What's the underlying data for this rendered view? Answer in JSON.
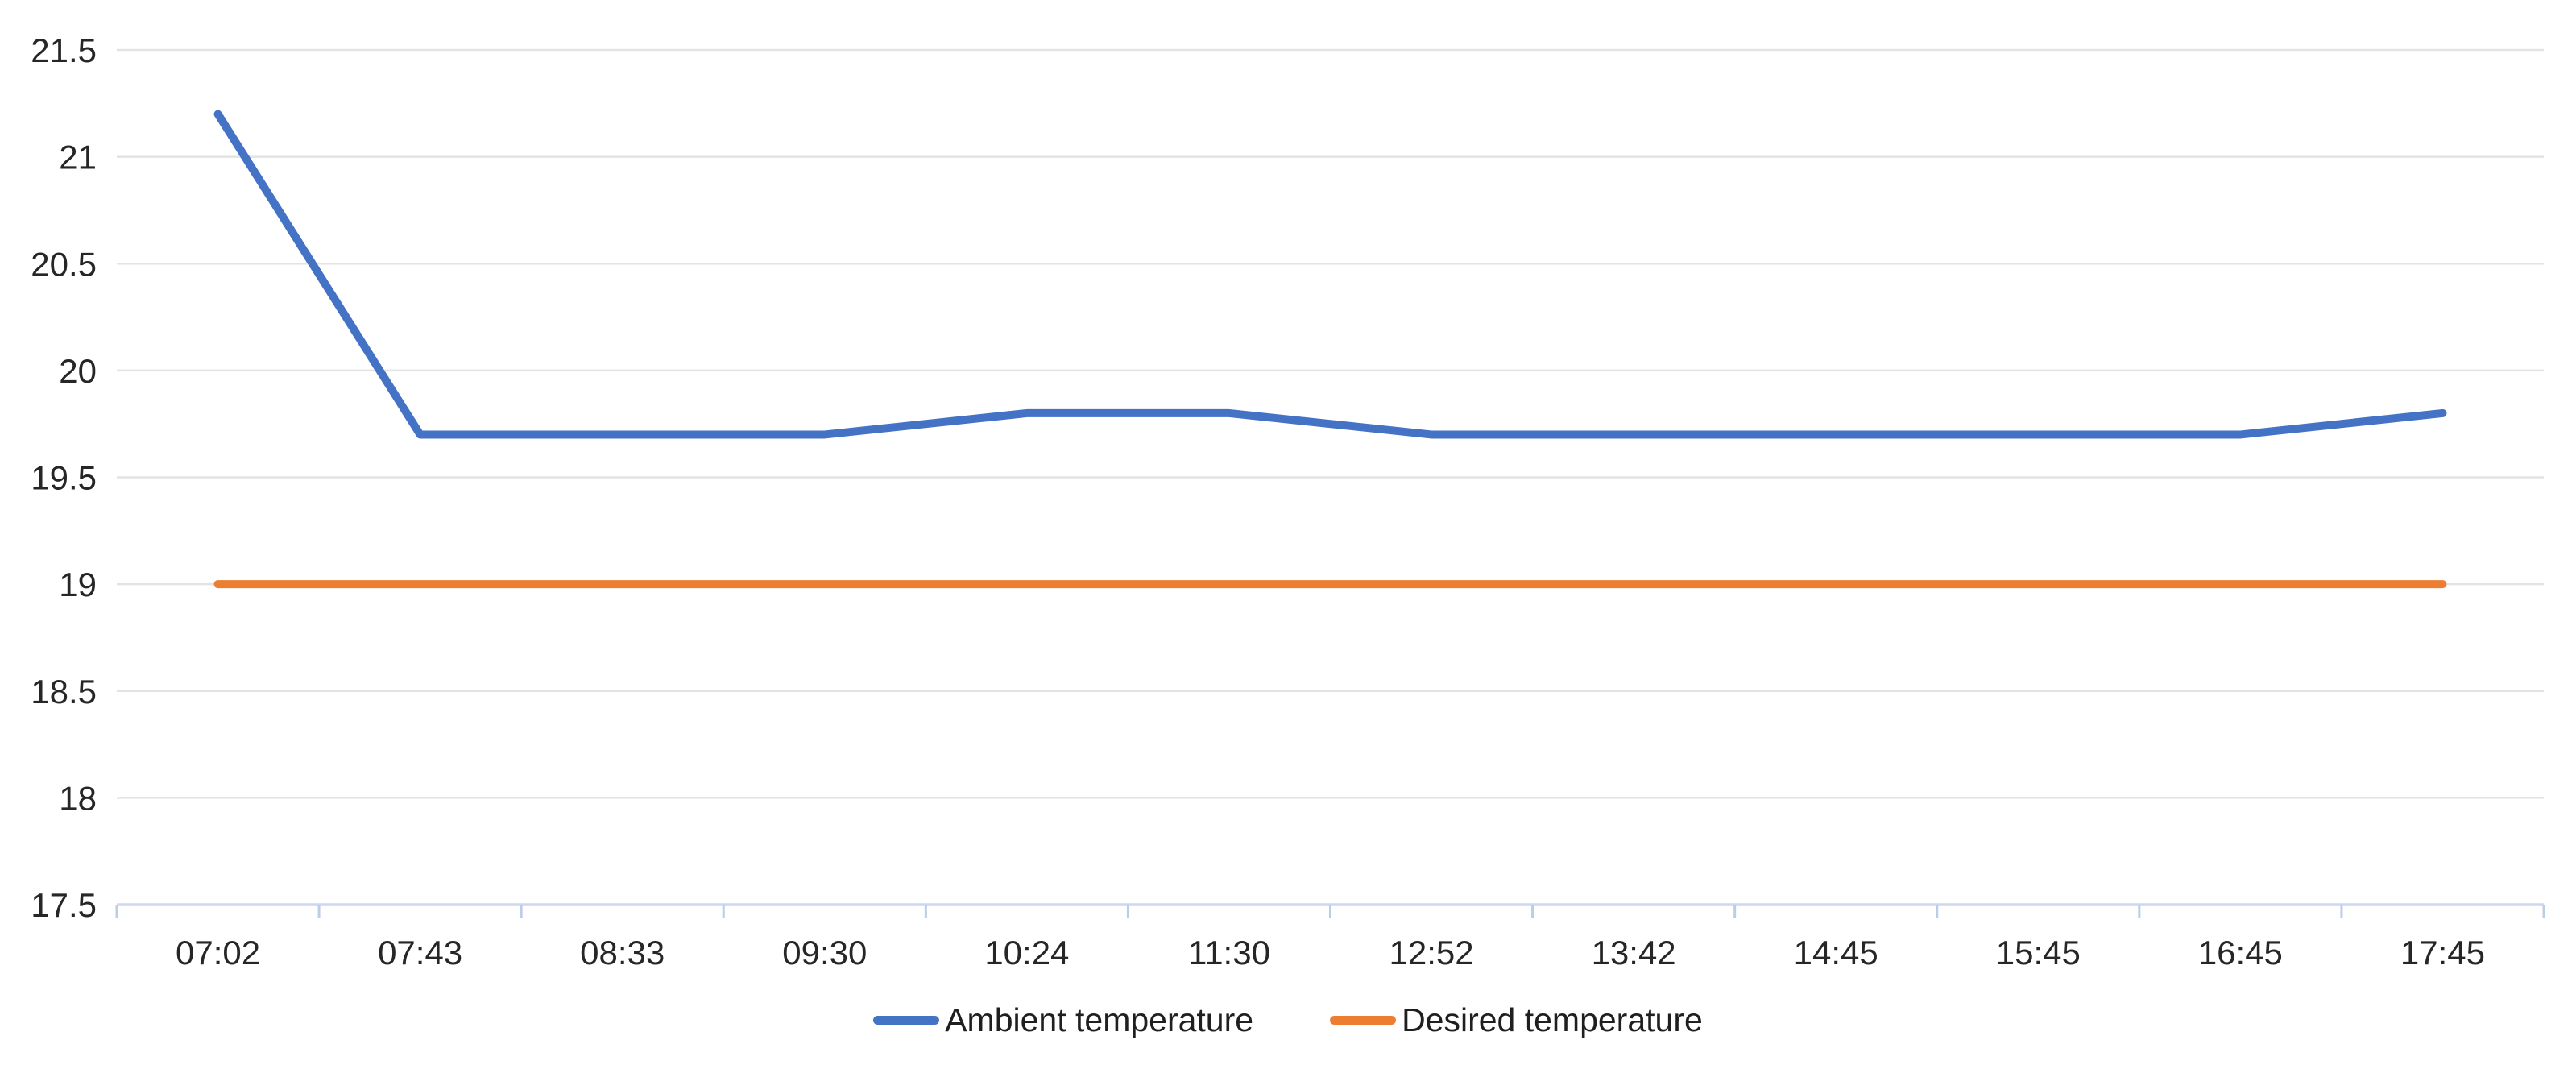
{
  "chart_data": {
    "type": "line",
    "title": "",
    "xlabel": "",
    "ylabel": "",
    "categories": [
      "07:02",
      "07:43",
      "08:33",
      "09:30",
      "10:24",
      "11:30",
      "12:52",
      "13:42",
      "14:45",
      "15:45",
      "16:45",
      "17:45"
    ],
    "series": [
      {
        "name": "Ambient temperature",
        "color": "#4472C4",
        "values": [
          21.2,
          19.7,
          19.7,
          19.7,
          19.8,
          19.8,
          19.7,
          19.7,
          19.7,
          19.7,
          19.7,
          19.8
        ]
      },
      {
        "name": "Desired temperature",
        "color": "#ED7D31",
        "values": [
          19,
          19,
          19,
          19,
          19,
          19,
          19,
          19,
          19,
          19,
          19,
          19
        ]
      }
    ],
    "ylim": [
      17.5,
      21.5
    ],
    "y_tick_step": 0.5,
    "y_tick_labels": [
      "21.5",
      "21",
      "20.5",
      "20",
      "19.5",
      "19",
      "18.5",
      "18",
      "17.5"
    ],
    "grid": true,
    "legend_position": "bottom",
    "x_tick_placement": "between-categories"
  },
  "legend": {
    "items": [
      {
        "label": "Ambient temperature",
        "color": "#4472C4"
      },
      {
        "label": "Desired temperature",
        "color": "#ED7D31"
      }
    ]
  },
  "colors": {
    "background": "#FFFFFF",
    "gridline": "#E3E3E3",
    "axis_line": "#CBD8EF",
    "tick_mark": "#BCCDE9",
    "axis_label_text": "#262626",
    "legend_text": "#1F1F1F"
  }
}
